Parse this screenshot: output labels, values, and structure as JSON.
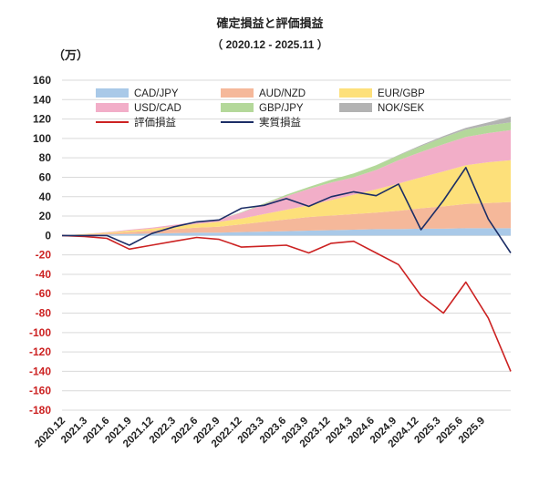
{
  "chart_data": {
    "type": "area",
    "title": "確定損益と評価損益",
    "subtitle": "（ 2020.12 - 2025.11 ）",
    "ylabel": "（万）",
    "ylim": [
      -180,
      160
    ],
    "y_ticks": [
      160,
      140,
      120,
      100,
      80,
      60,
      40,
      20,
      0,
      -20,
      -40,
      -60,
      -80,
      -100,
      -120,
      -140,
      -160,
      -180
    ],
    "x_ticks": [
      "2020.12",
      "2021.3",
      "2021.6",
      "2021.9",
      "2021.12",
      "2022.3",
      "2022.6",
      "2022.9",
      "2022.12",
      "2023.3",
      "2023.6",
      "2023.9",
      "2023.12",
      "2024.3",
      "2024.6",
      "2024.9",
      "2024.12",
      "2025.3",
      "2025.6",
      "2025.9"
    ],
    "grid": true,
    "legend_position": "top",
    "x": [
      "2020.12",
      "2021.3",
      "2021.6",
      "2021.9",
      "2021.12",
      "2022.3",
      "2022.6",
      "2022.9",
      "2022.12",
      "2023.3",
      "2023.6",
      "2023.9",
      "2023.12",
      "2024.3",
      "2024.6",
      "2024.9",
      "2024.12",
      "2025.3",
      "2025.6",
      "2025.9",
      "2025.11"
    ],
    "stacked_series": [
      {
        "name": "CAD/JPY",
        "color": "#a9c9e8",
        "values": [
          0,
          0.5,
          1,
          1.5,
          2,
          2.5,
          3,
          3,
          3.5,
          4,
          4.5,
          5,
          5.5,
          6,
          6.5,
          6.5,
          7,
          7,
          7.5,
          7.5,
          7.5
        ]
      },
      {
        "name": "AUD/NZD",
        "color": "#f5b89a",
        "values": [
          0,
          0.5,
          1,
          2,
          3,
          4,
          5,
          6,
          8,
          10,
          12,
          14,
          15,
          16,
          17,
          19,
          21,
          23,
          25,
          26,
          27
        ]
      },
      {
        "name": "EUR/GBP",
        "color": "#fde07a",
        "values": [
          0,
          0.5,
          1,
          1.5,
          2,
          3,
          4,
          5,
          6,
          8,
          10,
          12,
          16,
          20,
          24,
          28,
          32,
          36,
          40,
          42,
          43
        ]
      },
      {
        "name": "USD/CAD",
        "color": "#f2aec8",
        "values": [
          0,
          0,
          0.5,
          1,
          1,
          1.5,
          2,
          2.5,
          6,
          10,
          14,
          17,
          18,
          18,
          20,
          24,
          26,
          28,
          29,
          30,
          31
        ]
      },
      {
        "name": "GBP/JPY",
        "color": "#b4d89a",
        "values": [
          0,
          0,
          0,
          0,
          0,
          0,
          0,
          0,
          0.5,
          1,
          1.5,
          2,
          3,
          4,
          5,
          5,
          6,
          7,
          7.5,
          8,
          8
        ]
      },
      {
        "name": "NOK/SEK",
        "color": "#b3b3b3",
        "values": [
          0,
          0,
          0,
          0,
          0,
          0,
          0,
          0,
          0,
          0,
          0,
          0,
          0,
          0,
          0,
          0.5,
          1,
          1.5,
          2,
          3,
          6
        ]
      }
    ],
    "line_series": [
      {
        "name": "評価損益",
        "color": "#cc2222",
        "values": [
          0,
          -1,
          -3,
          -14,
          -10,
          -6,
          -2,
          -4,
          -12,
          -11,
          -10,
          -18,
          -8,
          -6,
          -18,
          -30,
          -62,
          -80,
          -48,
          -85,
          -140
        ]
      },
      {
        "name": "実質損益",
        "color": "#1c2e66",
        "values": [
          0,
          0,
          0,
          -10,
          2,
          9,
          14,
          16,
          28,
          31,
          38,
          30,
          40,
          45,
          41,
          53,
          6,
          36,
          70,
          17,
          -18
        ]
      }
    ],
    "legend": [
      {
        "name": "CAD/JPY",
        "color": "#a9c9e8",
        "kind": "area"
      },
      {
        "name": "AUD/NZD",
        "color": "#f5b89a",
        "kind": "area"
      },
      {
        "name": "EUR/GBP",
        "color": "#fde07a",
        "kind": "area"
      },
      {
        "name": "USD/CAD",
        "color": "#f2aec8",
        "kind": "area"
      },
      {
        "name": "GBP/JPY",
        "color": "#b4d89a",
        "kind": "area"
      },
      {
        "name": "NOK/SEK",
        "color": "#b3b3b3",
        "kind": "area"
      },
      {
        "name": "評価損益",
        "color": "#cc2222",
        "kind": "line"
      },
      {
        "name": "実質損益",
        "color": "#1c2e66",
        "kind": "line"
      }
    ],
    "colors": {
      "positive_tick": "#222222",
      "negative_tick": "#cc2222",
      "grid": "#d9d9d9"
    }
  }
}
